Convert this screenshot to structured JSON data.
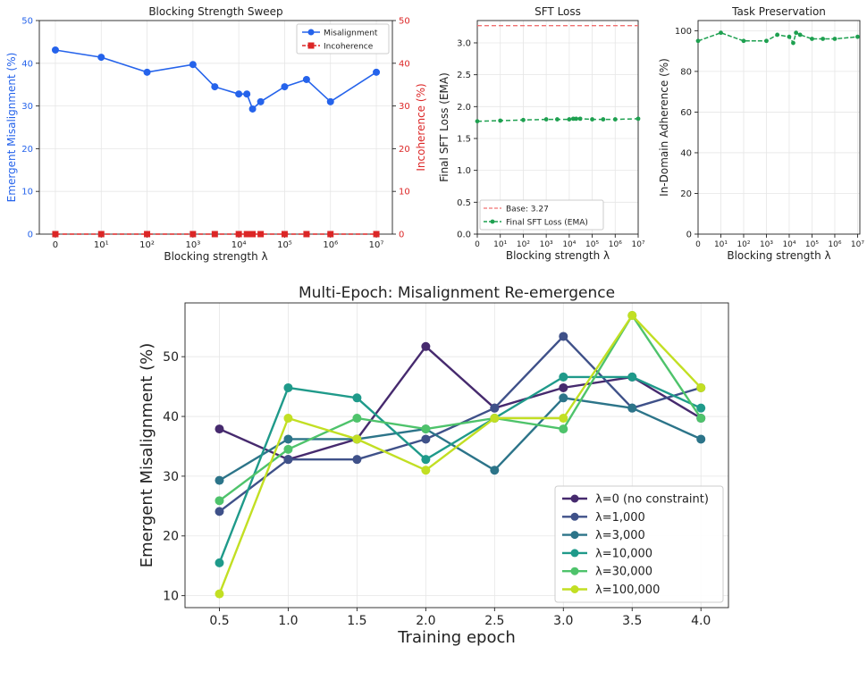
{
  "figure": {
    "top_left_title": "Blocking Strength Sweep",
    "top_mid_title": "SFT Loss",
    "top_right_title": "Task Preservation",
    "bottom_title": "Multi-Epoch: Misalignment Re-emergence"
  },
  "colors": {
    "blue": "#2563eb",
    "red": "#dc2626",
    "green": "#1ea050",
    "salmon": "#f07070",
    "grid": "#e6e6e6",
    "axis": "#222222"
  },
  "chart_data": [
    {
      "id": "sweep",
      "type": "line",
      "title": "Blocking Strength Sweep",
      "xlabel": "Blocking strength λ",
      "ylabel_left": "Emergent Misalignment (%)",
      "ylabel_right": "Incoherence (%)",
      "xscale": "symlog",
      "xticks": [
        "0",
        "10¹",
        "10²",
        "10³",
        "10⁴",
        "10⁵",
        "10⁶",
        "10⁷"
      ],
      "ylim": [
        0,
        50
      ],
      "yticks": [
        0,
        10,
        20,
        30,
        40,
        50
      ],
      "legend_position": "upper right",
      "series": [
        {
          "name": "Misalignment",
          "x": [
            0,
            10,
            100,
            1000,
            3000,
            10000,
            15000,
            20000,
            30000,
            100000,
            300000,
            1000000,
            10000000
          ],
          "y": [
            43.1,
            41.4,
            37.9,
            39.7,
            34.5,
            32.8,
            32.8,
            29.3,
            31.0,
            34.5,
            36.2,
            31.0,
            37.9
          ]
        },
        {
          "name": "Incoherence",
          "x": [
            0,
            10,
            100,
            1000,
            3000,
            10000,
            15000,
            20000,
            30000,
            100000,
            300000,
            1000000,
            10000000
          ],
          "y": [
            0,
            0,
            0,
            0,
            0,
            0,
            0,
            0,
            0,
            0,
            0,
            0,
            0
          ]
        }
      ]
    },
    {
      "id": "sft",
      "type": "line",
      "title": "SFT Loss",
      "xlabel": "Blocking strength λ",
      "ylabel": "Final SFT Loss (EMA)",
      "xscale": "symlog",
      "xticks": [
        "0",
        "10¹",
        "10²",
        "10³",
        "10⁴",
        "10⁵",
        "10⁶",
        "10⁷"
      ],
      "ylim": [
        0,
        3.35
      ],
      "yticks": [
        "0.0",
        "0.5",
        "1.0",
        "1.5",
        "2.0",
        "2.5",
        "3.0"
      ],
      "baseline": {
        "label": "Base: 3.27",
        "value": 3.27
      },
      "legend_position": "lower left",
      "series": [
        {
          "name": "Final SFT Loss (EMA)",
          "x": [
            0,
            10,
            100,
            1000,
            3000,
            10000,
            15000,
            20000,
            30000,
            100000,
            300000,
            1000000,
            10000000
          ],
          "y": [
            1.77,
            1.78,
            1.79,
            1.8,
            1.8,
            1.8,
            1.81,
            1.81,
            1.81,
            1.8,
            1.8,
            1.8,
            1.81
          ]
        }
      ]
    },
    {
      "id": "task",
      "type": "line",
      "title": "Task Preservation",
      "xlabel": "Blocking strength λ",
      "ylabel": "In-Domain Adherence (%)",
      "xscale": "symlog",
      "xticks": [
        "0",
        "10¹",
        "10²",
        "10³",
        "10⁴",
        "10⁵",
        "10⁶",
        "10⁷"
      ],
      "ylim": [
        0,
        105
      ],
      "yticks": [
        0,
        20,
        40,
        60,
        80,
        100
      ],
      "series": [
        {
          "name": "In-Domain Adherence",
          "x": [
            0,
            10,
            100,
            1000,
            3000,
            10000,
            15000,
            20000,
            30000,
            100000,
            300000,
            1000000,
            10000000
          ],
          "y": [
            95,
            99,
            95,
            95,
            98,
            97,
            94,
            99,
            98,
            96,
            96,
            96,
            97
          ]
        }
      ]
    },
    {
      "id": "epochs",
      "type": "line",
      "title": "Multi-Epoch: Misalignment Re-emergence",
      "xlabel": "Training epoch",
      "ylabel": "Emergent Misalignment (%)",
      "categories": [
        0.5,
        1.0,
        1.5,
        2.0,
        2.5,
        3.0,
        3.5,
        4.0
      ],
      "xlim": [
        0.25,
        4.2
      ],
      "xticks": [
        "0.5",
        "1.0",
        "1.5",
        "2.0",
        "2.5",
        "3.0",
        "3.5",
        "4.0"
      ],
      "ylim": [
        8,
        59
      ],
      "yticks": [
        10,
        20,
        30,
        40,
        50
      ],
      "legend_position": "lower right",
      "series": [
        {
          "name": "λ=0 (no constraint)",
          "color": "#462a6e",
          "values": [
            37.9,
            32.8,
            36.2,
            51.7,
            41.4,
            44.8,
            46.6,
            39.7
          ]
        },
        {
          "name": "λ=1,000",
          "color": "#3f5189",
          "values": [
            24.1,
            32.8,
            32.8,
            36.2,
            41.4,
            53.4,
            41.4,
            44.8
          ]
        },
        {
          "name": "λ=3,000",
          "color": "#2c7489",
          "values": [
            29.3,
            36.2,
            36.2,
            37.9,
            31.0,
            43.1,
            41.4,
            36.2
          ]
        },
        {
          "name": "λ=10,000",
          "color": "#1f9a8a",
          "values": [
            15.5,
            44.8,
            43.1,
            32.8,
            39.7,
            46.6,
            46.6,
            41.4
          ]
        },
        {
          "name": "λ=30,000",
          "color": "#4ec36b",
          "values": [
            25.9,
            34.5,
            39.7,
            37.9,
            39.7,
            37.9,
            56.9,
            39.7
          ]
        },
        {
          "name": "λ=100,000",
          "color": "#c2df23",
          "values": [
            10.3,
            39.7,
            36.2,
            31.0,
            39.7,
            39.7,
            56.9,
            44.8
          ]
        }
      ]
    }
  ]
}
